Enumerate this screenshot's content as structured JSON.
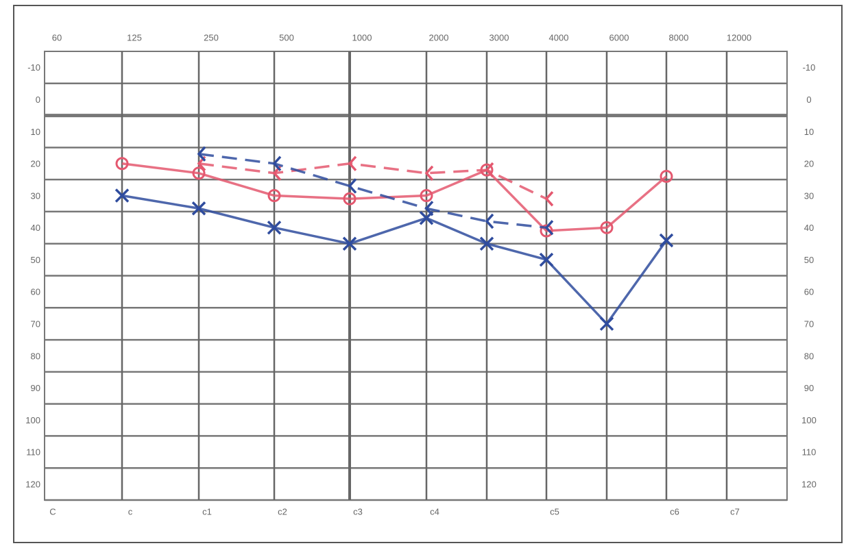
{
  "chart_data": {
    "type": "line",
    "categories": [
      "60",
      "125",
      "250",
      "500",
      "1000",
      "2000",
      "3000",
      "4000",
      "6000",
      "8000",
      "12000"
    ],
    "bottom_labels": [
      "C",
      "c",
      "c1",
      "c2",
      "c3",
      "c4",
      null,
      "c5",
      null,
      "c6",
      "c7"
    ],
    "ylim": [
      -20,
      120
    ],
    "yticks": [
      -10,
      0,
      10,
      20,
      30,
      40,
      50,
      60,
      70,
      80,
      90,
      100,
      110,
      120
    ],
    "y_reversed": true,
    "grid": true,
    "series": [
      {
        "color": "#e4586f",
        "style": "solid",
        "marker": "circle",
        "values": [
          null,
          15,
          18,
          25,
          26,
          25,
          17,
          36,
          35,
          19,
          null
        ]
      },
      {
        "color": "#e4586f",
        "style": "dashed",
        "marker": "bracket",
        "values": [
          null,
          null,
          15,
          18,
          15,
          18,
          17,
          26,
          null,
          null,
          null
        ]
      },
      {
        "color": "#2f4c9e",
        "style": "solid",
        "marker": "cross",
        "values": [
          null,
          25,
          29,
          35,
          40,
          32,
          40,
          45,
          65,
          39,
          null
        ]
      },
      {
        "color": "#2f4c9e",
        "style": "dashed",
        "marker": "bracket",
        "values": [
          null,
          null,
          12,
          15,
          22,
          29,
          33,
          35,
          null,
          null,
          null
        ]
      }
    ]
  }
}
